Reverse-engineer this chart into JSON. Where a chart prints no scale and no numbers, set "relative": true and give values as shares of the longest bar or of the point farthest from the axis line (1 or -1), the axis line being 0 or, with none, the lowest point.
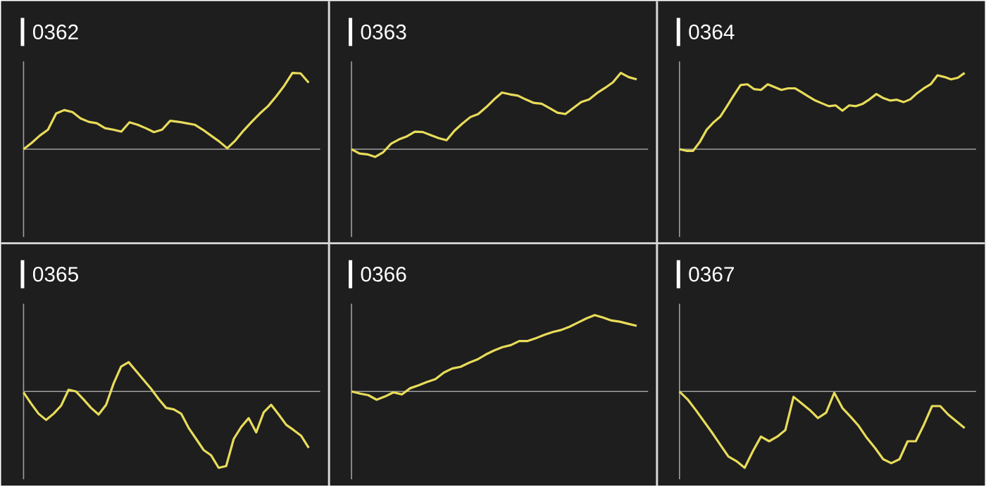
{
  "chart_data": [
    {
      "type": "line",
      "title": "0362",
      "relative": true,
      "color": "#e8dc5a",
      "categories": [
        null,
        null,
        null,
        null,
        null,
        null,
        null,
        null,
        null,
        null,
        null,
        null,
        null,
        null,
        null,
        null,
        null,
        null,
        null,
        null,
        null,
        null,
        null,
        null,
        null,
        null,
        null,
        null,
        null,
        null,
        null,
        null,
        null,
        null,
        null,
        null
      ],
      "values": [
        0,
        0.083,
        0.179,
        0.256,
        0.468,
        0.513,
        0.487,
        0.404,
        0.359,
        0.34,
        0.276,
        0.256,
        0.231,
        0.353,
        0.321,
        0.276,
        0.224,
        0.256,
        0.372,
        0.359,
        0.34,
        0.321,
        0.256,
        0.179,
        0.103,
        0.013,
        0.115,
        0.244,
        0.359,
        0.468,
        0.564,
        0.692,
        0.833,
        1,
        0.994,
        0.872
      ]
    },
    {
      "type": "line",
      "title": "0363",
      "relative": true,
      "color": "#e8dc5a",
      "categories": [
        null,
        null,
        null,
        null,
        null,
        null,
        null,
        null,
        null,
        null,
        null,
        null,
        null,
        null,
        null,
        null,
        null,
        null,
        null,
        null,
        null,
        null,
        null,
        null,
        null,
        null,
        null,
        null,
        null,
        null,
        null,
        null,
        null,
        null,
        null,
        null,
        null
      ],
      "values": [
        0,
        -0.056,
        -0.067,
        -0.101,
        -0.039,
        0.073,
        0.129,
        0.169,
        0.23,
        0.225,
        0.185,
        0.146,
        0.118,
        0.242,
        0.337,
        0.421,
        0.461,
        0.551,
        0.652,
        0.742,
        0.719,
        0.702,
        0.652,
        0.607,
        0.596,
        0.539,
        0.478,
        0.461,
        0.539,
        0.618,
        0.652,
        0.736,
        0.803,
        0.876,
        1,
        0.944,
        0.916
      ]
    },
    {
      "type": "line",
      "title": "0364",
      "relative": true,
      "color": "#e8dc5a",
      "categories": [
        null,
        null,
        null,
        null,
        null,
        null,
        null,
        null,
        null,
        null,
        null,
        null,
        null,
        null,
        null,
        null,
        null,
        null,
        null,
        null,
        null,
        null,
        null,
        null,
        null,
        null,
        null,
        null,
        null,
        null,
        null,
        null,
        null,
        null,
        null,
        null,
        null,
        null,
        null,
        null,
        null,
        null,
        null
      ],
      "values": [
        0,
        -0.021,
        -0.021,
        0.096,
        0.255,
        0.351,
        0.426,
        0.564,
        0.707,
        0.84,
        0.851,
        0.787,
        0.777,
        0.851,
        0.814,
        0.777,
        0.798,
        0.798,
        0.745,
        0.691,
        0.638,
        0.601,
        0.564,
        0.574,
        0.505,
        0.574,
        0.564,
        0.596,
        0.654,
        0.723,
        0.67,
        0.638,
        0.649,
        0.617,
        0.654,
        0.734,
        0.798,
        0.851,
        0.968,
        0.947,
        0.915,
        0.936,
        1
      ]
    },
    {
      "type": "line",
      "title": "0365",
      "relative": true,
      "color": "#e8dc5a",
      "categories": [
        null,
        null,
        null,
        null,
        null,
        null,
        null,
        null,
        null,
        null,
        null,
        null,
        null,
        null,
        null,
        null,
        null,
        null,
        null,
        null,
        null,
        null,
        null,
        null,
        null,
        null,
        null,
        null,
        null,
        null,
        null,
        null,
        null,
        null,
        null,
        null,
        null,
        null,
        null
      ],
      "values": [
        -0.012,
        -0.157,
        -0.291,
        -0.372,
        -0.291,
        -0.186,
        0.023,
        0,
        -0.105,
        -0.215,
        -0.302,
        -0.174,
        0.105,
        0.326,
        0.384,
        0.267,
        0.151,
        0.035,
        -0.099,
        -0.215,
        -0.233,
        -0.291,
        -0.477,
        -0.622,
        -0.767,
        -0.837,
        -1,
        -0.977,
        -0.622,
        -0.465,
        -0.349,
        -0.535,
        -0.273,
        -0.174,
        -0.302,
        -0.436,
        -0.506,
        -0.581,
        -0.738
      ]
    },
    {
      "type": "line",
      "title": "0366",
      "relative": true,
      "color": "#e8dc5a",
      "categories": [
        null,
        null,
        null,
        null,
        null,
        null,
        null,
        null,
        null,
        null,
        null,
        null,
        null,
        null,
        null,
        null,
        null,
        null,
        null,
        null,
        null,
        null,
        null,
        null,
        null,
        null,
        null,
        null,
        null,
        null,
        null,
        null,
        null,
        null,
        null
      ],
      "values": [
        0,
        -0.027,
        -0.048,
        -0.108,
        -0.065,
        -0.011,
        -0.038,
        0.043,
        0.081,
        0.124,
        0.161,
        0.247,
        0.301,
        0.323,
        0.376,
        0.419,
        0.484,
        0.538,
        0.581,
        0.608,
        0.661,
        0.661,
        0.699,
        0.742,
        0.78,
        0.806,
        0.849,
        0.903,
        0.957,
        1,
        0.968,
        0.93,
        0.914,
        0.887,
        0.86
      ]
    },
    {
      "type": "line",
      "title": "0367",
      "relative": true,
      "color": "#e8dc5a",
      "categories": [
        null,
        null,
        null,
        null,
        null,
        null,
        null,
        null,
        null,
        null,
        null,
        null,
        null,
        null,
        null,
        null,
        null,
        null,
        null,
        null,
        null,
        null,
        null,
        null,
        null,
        null,
        null,
        null,
        null,
        null,
        null,
        null,
        null,
        null,
        null,
        null
      ],
      "values": [
        0,
        -0.104,
        -0.243,
        -0.391,
        -0.539,
        -0.696,
        -0.852,
        -0.913,
        -1,
        -0.783,
        -0.591,
        -0.652,
        -0.591,
        -0.504,
        -0.07,
        -0.157,
        -0.243,
        -0.348,
        -0.278,
        -0.017,
        -0.217,
        -0.33,
        -0.452,
        -0.609,
        -0.739,
        -0.887,
        -0.939,
        -0.887,
        -0.652,
        -0.652,
        -0.435,
        -0.191,
        -0.191,
        -0.304,
        -0.391,
        -0.478
      ]
    }
  ]
}
